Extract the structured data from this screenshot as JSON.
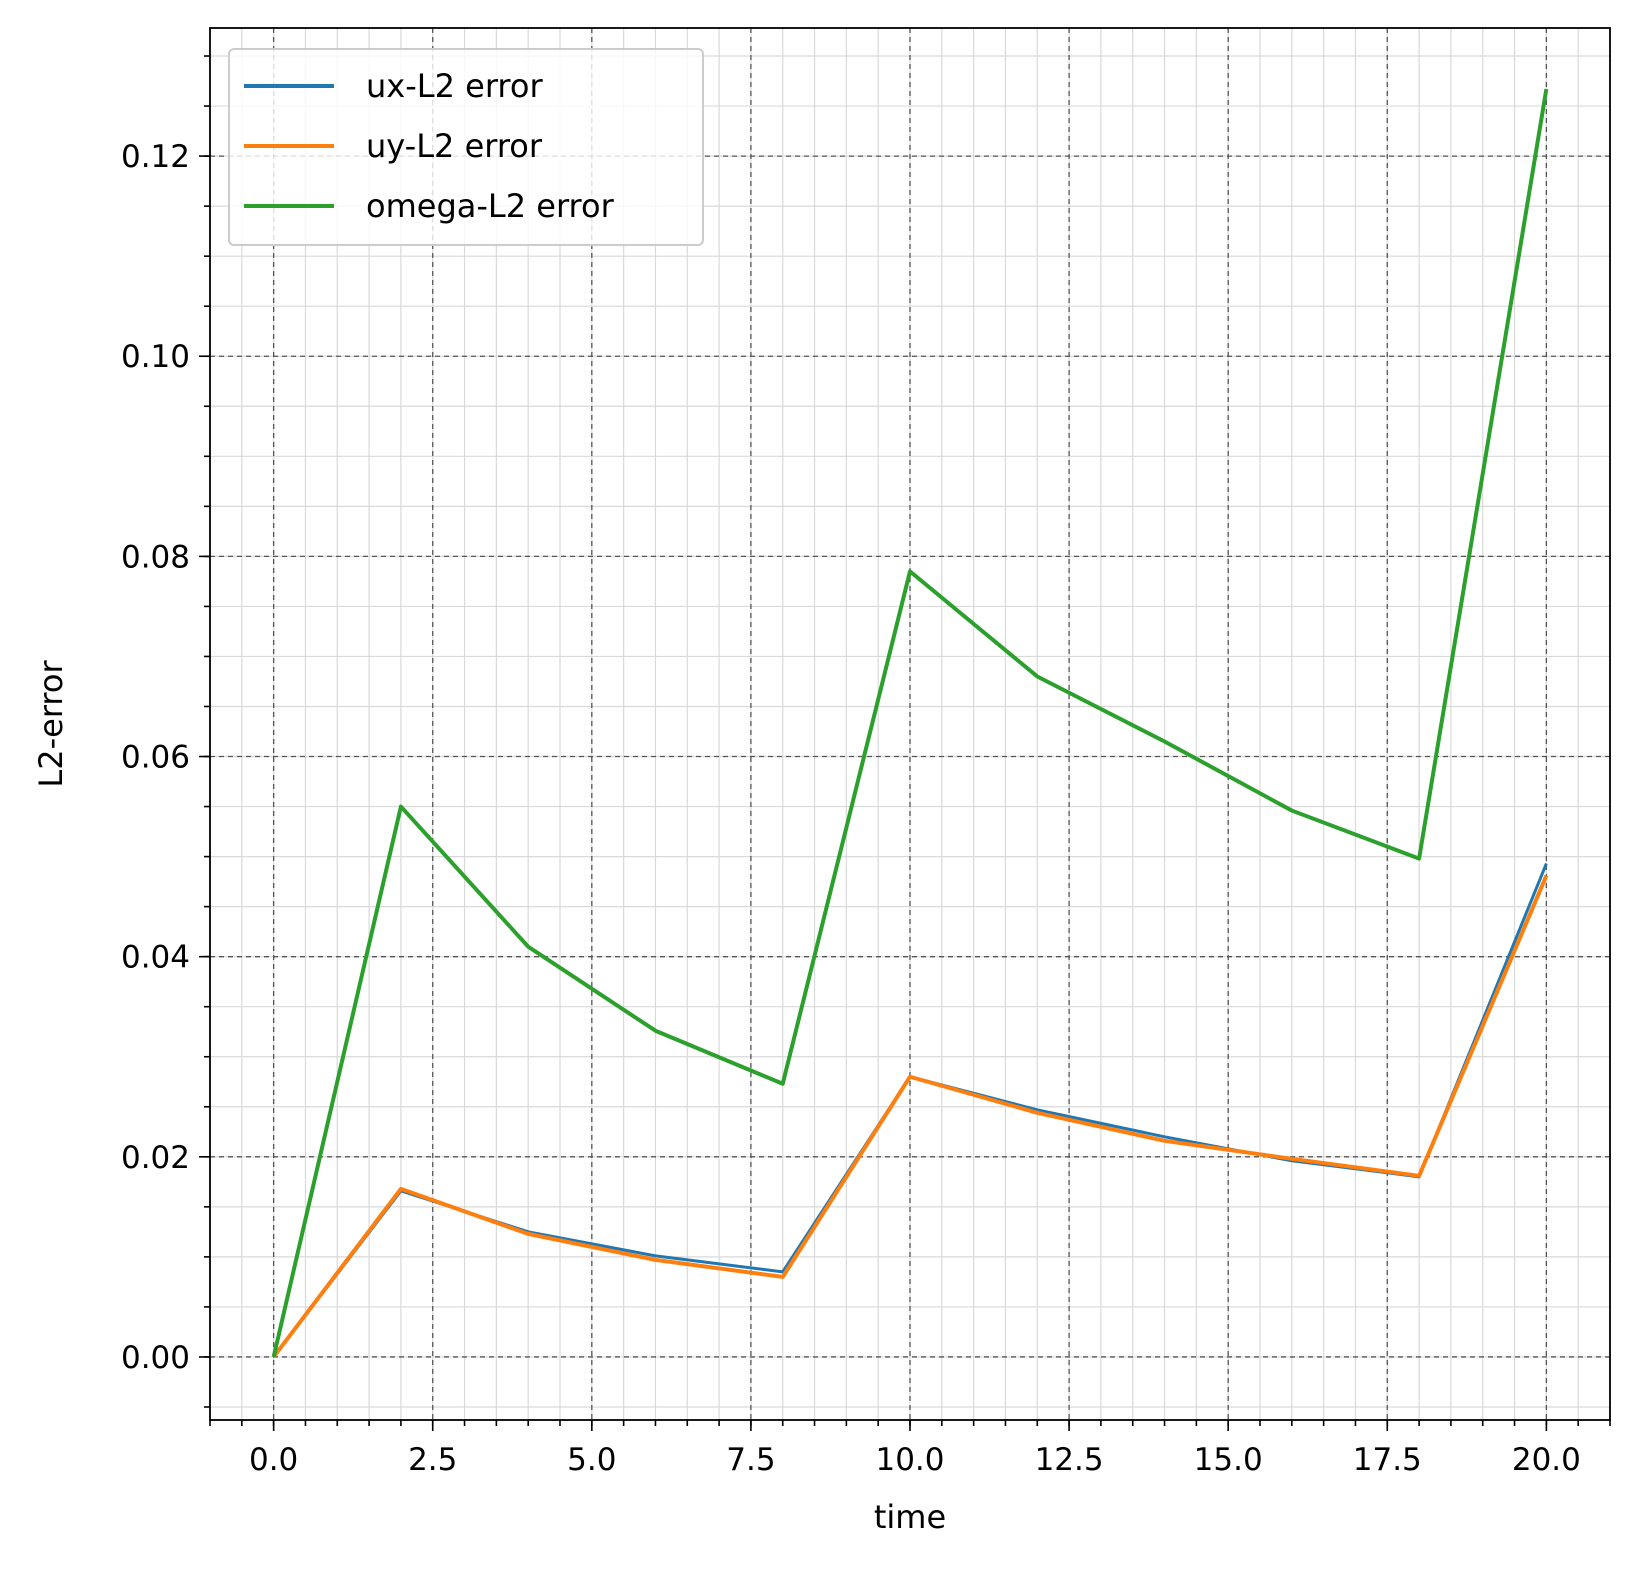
{
  "chart_data": {
    "type": "line",
    "title": "",
    "xlabel": "time",
    "ylabel": "L2-error",
    "xlim": [
      -1.0,
      21.0
    ],
    "ylim": [
      -0.0063,
      0.1328
    ],
    "x_major_ticks": [
      0.0,
      2.5,
      5.0,
      7.5,
      10.0,
      12.5,
      15.0,
      17.5,
      20.0
    ],
    "x_tick_labels": [
      "0.0",
      "2.5",
      "5.0",
      "7.5",
      "10.0",
      "12.5",
      "15.0",
      "17.5",
      "20.0"
    ],
    "x_minor_step": 0.5,
    "y_major_ticks": [
      0.0,
      0.02,
      0.04,
      0.06,
      0.08,
      0.1,
      0.12
    ],
    "y_tick_labels": [
      "0.00",
      "0.02",
      "0.04",
      "0.06",
      "0.08",
      "0.10",
      "0.12"
    ],
    "y_minor_step": 0.005,
    "grid": "major dashed, minor solid",
    "legend_position": "top-left",
    "x": [
      0,
      2,
      4,
      6,
      8,
      10,
      12,
      14,
      16,
      18,
      20
    ],
    "series": [
      {
        "name": "ux-L2 error",
        "color": "#1f77b4",
        "values": [
          0.0,
          0.0166,
          0.0125,
          0.0101,
          0.0085,
          0.028,
          0.0247,
          0.022,
          0.0196,
          0.018,
          0.0493
        ]
      },
      {
        "name": "uy-L2 error",
        "color": "#ff7f0e",
        "values": [
          0.0,
          0.0168,
          0.0123,
          0.0097,
          0.008,
          0.028,
          0.0244,
          0.0216,
          0.0198,
          0.0181,
          0.0481
        ]
      },
      {
        "name": "omega-L2 error",
        "color": "#2ca02c",
        "values": [
          0.0,
          0.055,
          0.041,
          0.0326,
          0.0273,
          0.0785,
          0.068,
          0.0615,
          0.0546,
          0.0498,
          0.1267
        ]
      }
    ]
  }
}
